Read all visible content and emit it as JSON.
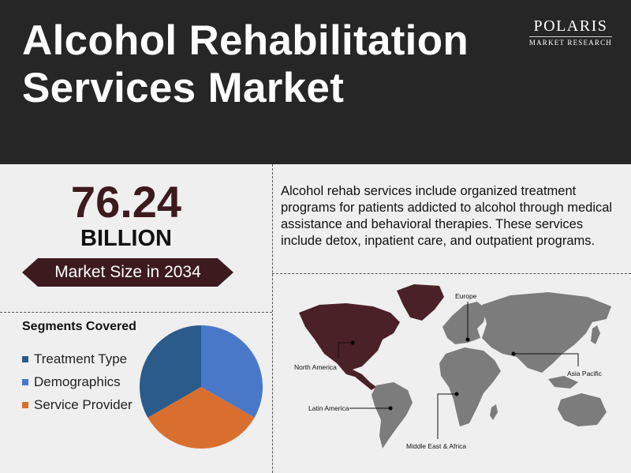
{
  "header": {
    "title_line1": "Alcohol Rehabilitation",
    "title_line2": "Services Market",
    "logo_name": "POLARIS",
    "logo_sub": "MARKET RESEARCH"
  },
  "market": {
    "value": "76.24",
    "unit": "BILLION",
    "label": "Market Size in 2034"
  },
  "description": "Alcohol rehab services include organized treatment programs for patients addicted to alcohol through medical assistance and behavioral therapies. These services include detox, inpatient care, and outpatient programs.",
  "segments_title": "Segments Covered",
  "colors": {
    "header_bg": "#262626",
    "accent": "#3d1a1e",
    "region_highlight": "#4a2126",
    "land_grey": "#7c7c7c"
  },
  "chart_data": {
    "type": "pie",
    "categories": [
      "Treatment Type",
      "Demographics",
      "Service Provider"
    ],
    "values": [
      33.3,
      33.3,
      33.4
    ],
    "colors": [
      "#2b5b8b",
      "#4a78c9",
      "#d86f2f"
    ]
  },
  "map": {
    "regions": [
      "North America",
      "Europe",
      "Asia Pacific",
      "Latin America",
      "Middle East & Africa"
    ],
    "highlighted": "North America"
  }
}
